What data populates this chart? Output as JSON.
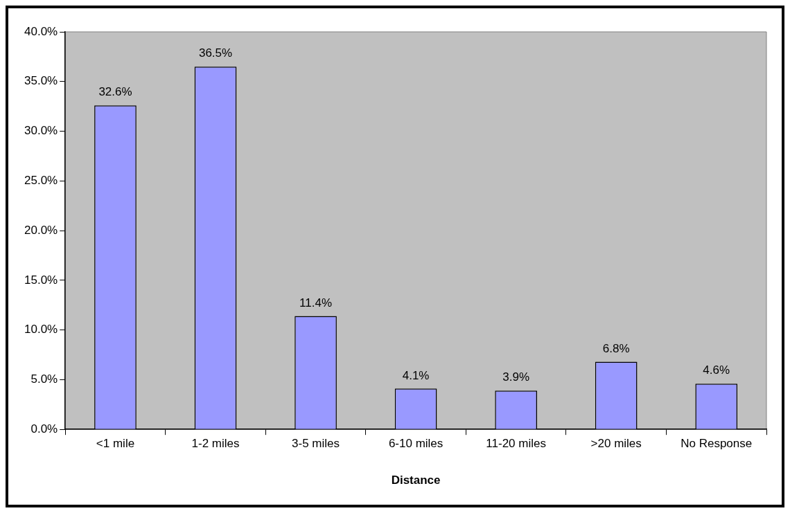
{
  "chart_data": {
    "type": "bar",
    "xlabel": "Distance",
    "categories": [
      "<1 mile",
      "1-2 miles",
      "3-5 miles",
      "6-10 miles",
      "11-20 miles",
      ">20 miles",
      "No Response"
    ],
    "values": [
      32.6,
      36.5,
      11.4,
      4.1,
      3.9,
      6.8,
      4.6
    ],
    "value_labels": [
      "32.6%",
      "36.5%",
      "11.4%",
      "4.1%",
      "3.9%",
      "6.8%",
      "4.6%"
    ],
    "color": "#9999ff",
    "ylim": [
      0,
      40
    ],
    "yticks": [
      {
        "value": 0,
        "label": "0.0%"
      },
      {
        "value": 5,
        "label": "5.0%"
      },
      {
        "value": 10,
        "label": "10.0%"
      },
      {
        "value": 15,
        "label": "15.0%"
      },
      {
        "value": 20,
        "label": "20.0%"
      },
      {
        "value": 25,
        "label": "25.0%"
      },
      {
        "value": 30,
        "label": "30.0%"
      },
      {
        "value": 35,
        "label": "35.0%"
      },
      {
        "value": 40,
        "label": "40.0%"
      }
    ],
    "grid": false,
    "legend": false
  }
}
